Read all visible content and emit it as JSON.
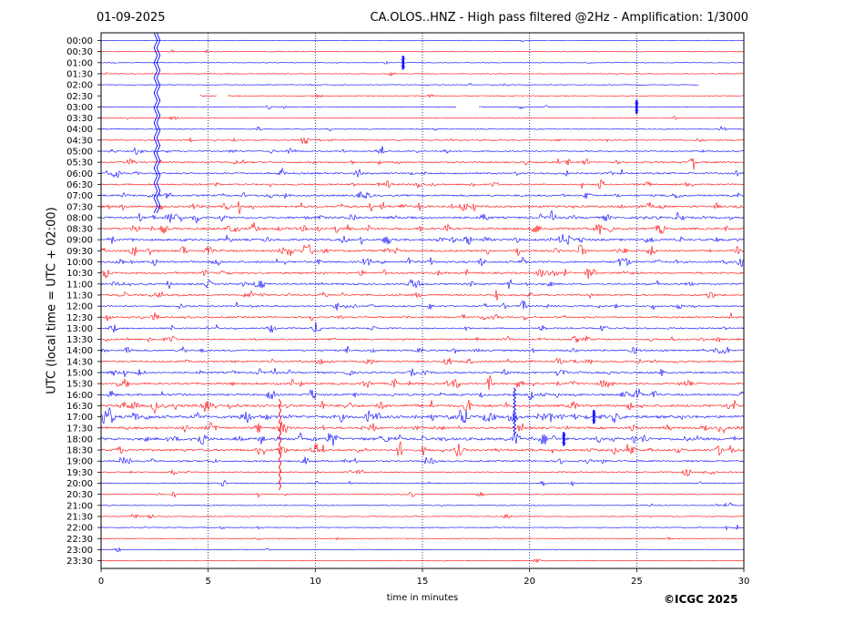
{
  "header": {
    "date": "01-09-2025",
    "title": "CA.OLOS..HNZ - High pass filtered @2Hz - Amplification: 1/3000"
  },
  "footer": {
    "copyright": "©ICGC 2025"
  },
  "colors": {
    "trace_a": "#ff0000",
    "trace_b": "#0000ff",
    "frame": "#000000",
    "gridline": "#000080"
  },
  "chart_data": {
    "type": "line",
    "subtype": "helicorder",
    "xlabel": "time in minutes",
    "ylabel": "UTC (local time = UTC + 02:00)",
    "xlim": [
      0,
      30
    ],
    "xticks": [
      0,
      5,
      10,
      15,
      20,
      25,
      30
    ],
    "x_gridlines": [
      5,
      10,
      15,
      20,
      25
    ],
    "grid": "vertical dotted",
    "row_labels": [
      "00:00",
      "00:30",
      "01:00",
      "01:30",
      "02:00",
      "02:30",
      "03:00",
      "03:30",
      "04:00",
      "04:30",
      "05:00",
      "05:30",
      "06:00",
      "06:30",
      "07:00",
      "07:30",
      "08:00",
      "08:30",
      "09:00",
      "09:30",
      "10:00",
      "10:30",
      "11:00",
      "11:30",
      "12:00",
      "12:30",
      "13:00",
      "13:30",
      "14:00",
      "14:30",
      "15:00",
      "15:30",
      "16:00",
      "16:30",
      "17:00",
      "17:30",
      "18:00",
      "18:30",
      "19:00",
      "19:30",
      "20:00",
      "20:30",
      "21:00",
      "21:30",
      "22:00",
      "22:30",
      "23:00",
      "23:30"
    ],
    "row_color_order": [
      "blue",
      "red"
    ],
    "activity_level": [
      0.02,
      0.04,
      0.05,
      0.04,
      0.06,
      0.06,
      0.07,
      0.05,
      0.1,
      0.18,
      0.22,
      0.28,
      0.32,
      0.28,
      0.35,
      0.45,
      0.45,
      0.45,
      0.45,
      0.42,
      0.38,
      0.36,
      0.36,
      0.36,
      0.3,
      0.28,
      0.28,
      0.3,
      0.32,
      0.34,
      0.36,
      0.4,
      0.42,
      0.55,
      0.7,
      0.45,
      0.62,
      0.5,
      0.3,
      0.2,
      0.12,
      0.1,
      0.08,
      0.08,
      0.07,
      0.05,
      0.04,
      0.03
    ],
    "events": [
      {
        "row": 0,
        "minute": 2.55,
        "amplitude": "clipped",
        "rows_spanned": 16
      },
      {
        "row": 33,
        "minute": 8.35,
        "amplitude": "large",
        "rows_spanned": 8
      },
      {
        "row": 32,
        "minute": 19.3,
        "amplitude": "large",
        "rows_spanned": 4
      },
      {
        "row": 34,
        "minute": 23.0,
        "amplitude": "moderate",
        "rows_spanned": 1
      },
      {
        "row": 36,
        "minute": 21.6,
        "amplitude": "moderate",
        "rows_spanned": 1
      },
      {
        "row": 6,
        "minute": 25.0,
        "amplitude": "small",
        "rows_spanned": 1
      },
      {
        "row": 2,
        "minute": 14.1,
        "amplitude": "small",
        "rows_spanned": 1
      }
    ],
    "data_gaps": [
      {
        "row": 4,
        "start": 27.9,
        "end": 30
      },
      {
        "row": 5,
        "start": 0,
        "end": 4.6
      },
      {
        "row": 5,
        "start": 5.4,
        "end": 5.9
      },
      {
        "row": 6,
        "start": 16.6,
        "end": 17.6
      }
    ]
  }
}
